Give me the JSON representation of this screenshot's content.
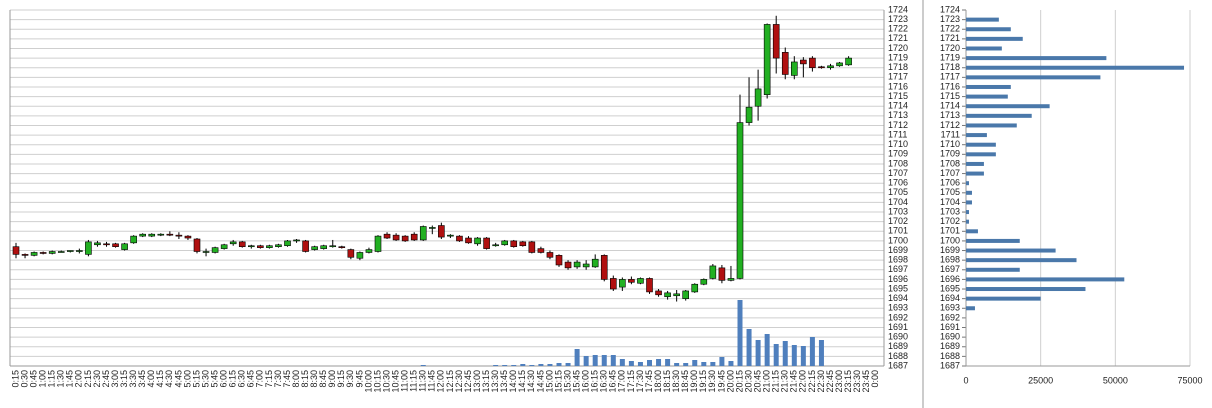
{
  "chart_data": [
    {
      "type": "candlestick",
      "categories": [
        "0:15",
        "0:30",
        "0:45",
        "1:00",
        "1:15",
        "1:30",
        "1:45",
        "2:00",
        "2:15",
        "2:30",
        "2:45",
        "3:00",
        "3:15",
        "3:30",
        "3:45",
        "4:00",
        "4:15",
        "4:30",
        "4:45",
        "5:00",
        "5:15",
        "5:30",
        "5:45",
        "6:00",
        "6:15",
        "6:30",
        "6:45",
        "7:00",
        "7:15",
        "7:30",
        "7:45",
        "8:00",
        "8:15",
        "8:30",
        "8:45",
        "9:00",
        "9:15",
        "9:30",
        "9:45",
        "10:00",
        "10:15",
        "10:30",
        "10:45",
        "11:00",
        "11:15",
        "11:30",
        "11:45",
        "12:00",
        "12:15",
        "12:30",
        "12:45",
        "13:00",
        "13:15",
        "13:30",
        "13:45",
        "14:00",
        "14:15",
        "14:30",
        "14:45",
        "15:00",
        "15:15",
        "15:30",
        "15:45",
        "16:00",
        "16:15",
        "16:30",
        "16:45",
        "17:00",
        "17:15",
        "17:30",
        "17:45",
        "18:00",
        "18:15",
        "18:30",
        "18:45",
        "19:00",
        "19:15",
        "19:30",
        "19:45",
        "20:00",
        "20:15",
        "20:30",
        "20:45",
        "21:00",
        "21:15",
        "21:30",
        "21:45",
        "22:00",
        "22:15",
        "22:30",
        "22:45",
        "23:00",
        "23:15",
        "23:30",
        "23:45",
        "0:00"
      ],
      "open": [
        1699.4,
        1698.6,
        1698.5,
        1698.8,
        1698.7,
        1698.9,
        1698.9,
        1699.0,
        1698.6,
        1699.6,
        1699.7,
        1699.7,
        1699.1,
        1699.8,
        1700.5,
        1700.5,
        1700.6,
        1700.7,
        1700.6,
        1700.5,
        1700.2,
        1698.9,
        1698.8,
        1699.2,
        1699.7,
        1699.9,
        1699.4,
        1699.5,
        1699.3,
        1699.4,
        1699.5,
        1700.0,
        1700.0,
        1699.1,
        1699.2,
        1699.4,
        1699.4,
        1699.1,
        1698.2,
        1698.8,
        1698.9,
        1700.7,
        1700.6,
        1700.5,
        1700.7,
        1700.1,
        1701.3,
        1701.6,
        1700.5,
        1700.5,
        1700.3,
        1699.7,
        1700.3,
        1699.5,
        1699.6,
        1700.0,
        1699.9,
        1699.9,
        1699.2,
        1698.8,
        1698.5,
        1697.8,
        1697.3,
        1697.3,
        1697.3,
        1698.5,
        1696.1,
        1695.2,
        1696.0,
        1695.6,
        1696.1,
        1694.8,
        1694.2,
        1694.3,
        1694.0,
        1694.7,
        1695.5,
        1696.1,
        1697.2,
        1695.9,
        1696.1,
        1712.3,
        1714.0,
        1715.2,
        1722.5,
        1719.6,
        1717.2,
        1718.8,
        1719.0,
        1718.1,
        1718.0,
        1718.2,
        1718.3,
        null,
        null,
        null
      ],
      "high": [
        1699.8,
        1698.7,
        1698.9,
        1698.9,
        1699.0,
        1699.0,
        1699.0,
        1699.2,
        1700.1,
        1700.0,
        1699.9,
        1699.8,
        1699.8,
        1700.6,
        1700.8,
        1700.8,
        1700.8,
        1701.0,
        1700.9,
        1700.6,
        1700.3,
        1699.2,
        1699.4,
        1699.7,
        1700.1,
        1700.0,
        1699.6,
        1699.6,
        1699.6,
        1699.7,
        1700.1,
        1700.2,
        1700.1,
        1699.5,
        1699.6,
        1700.1,
        1699.5,
        1699.2,
        1698.9,
        1699.3,
        1700.6,
        1700.9,
        1700.8,
        1700.6,
        1700.9,
        1701.6,
        1701.6,
        1701.9,
        1700.7,
        1700.6,
        1700.5,
        1700.4,
        1700.4,
        1699.8,
        1700.1,
        1700.1,
        1700.0,
        1700.0,
        1699.4,
        1699.0,
        1698.6,
        1698.0,
        1698.0,
        1698.0,
        1698.6,
        1698.6,
        1696.4,
        1696.2,
        1696.3,
        1696.2,
        1696.2,
        1695.0,
        1694.8,
        1694.9,
        1694.9,
        1695.6,
        1696.1,
        1697.6,
        1697.5,
        1697.4,
        1715.2,
        1717.0,
        1717.8,
        1722.6,
        1723.4,
        1720.1,
        1719.2,
        1719.1,
        1719.2,
        1718.2,
        1718.4,
        1718.6,
        1719.2,
        null,
        null,
        null
      ],
      "low": [
        1698.2,
        1698.2,
        1698.4,
        1698.6,
        1698.6,
        1698.8,
        1698.8,
        1698.7,
        1698.4,
        1699.4,
        1699.4,
        1699.3,
        1699.0,
        1699.7,
        1700.4,
        1700.4,
        1700.5,
        1700.5,
        1700.2,
        1700.1,
        1698.7,
        1698.4,
        1698.7,
        1699.1,
        1699.5,
        1699.3,
        1699.2,
        1699.2,
        1699.2,
        1699.3,
        1699.4,
        1699.8,
        1698.8,
        1699.0,
        1699.1,
        1699.3,
        1699.2,
        1698.1,
        1698.0,
        1698.7,
        1698.8,
        1700.2,
        1700.0,
        1699.9,
        1700.0,
        1700.0,
        1700.7,
        1700.2,
        1700.3,
        1699.9,
        1699.7,
        1699.5,
        1699.1,
        1699.4,
        1699.5,
        1699.3,
        1699.4,
        1698.7,
        1698.7,
        1698.1,
        1697.3,
        1697.0,
        1697.1,
        1697.0,
        1697.2,
        1695.8,
        1694.8,
        1694.8,
        1695.5,
        1695.5,
        1694.5,
        1694.2,
        1693.9,
        1693.7,
        1693.8,
        1694.6,
        1695.4,
        1696.0,
        1695.6,
        1695.8,
        1696.0,
        1712.0,
        1712.5,
        1714.8,
        1717.4,
        1716.8,
        1716.8,
        1717.0,
        1717.6,
        1717.9,
        1717.8,
        1718.1,
        1718.2,
        null,
        null,
        null
      ],
      "close": [
        1698.6,
        1698.5,
        1698.8,
        1698.7,
        1698.9,
        1698.9,
        1699.0,
        1699.0,
        1699.9,
        1699.8,
        1699.6,
        1699.4,
        1699.7,
        1700.5,
        1700.7,
        1700.7,
        1700.7,
        1700.6,
        1700.5,
        1700.3,
        1698.9,
        1698.9,
        1699.3,
        1699.6,
        1699.9,
        1699.4,
        1699.5,
        1699.3,
        1699.5,
        1699.6,
        1700.0,
        1700.1,
        1698.9,
        1699.4,
        1699.5,
        1699.5,
        1699.3,
        1698.3,
        1698.8,
        1699.1,
        1700.5,
        1700.3,
        1700.1,
        1700.0,
        1700.1,
        1701.5,
        1701.4,
        1700.4,
        1700.6,
        1700.0,
        1699.8,
        1700.3,
        1699.2,
        1699.6,
        1700.0,
        1699.4,
        1699.5,
        1698.8,
        1698.8,
        1698.3,
        1697.5,
        1697.2,
        1697.8,
        1697.6,
        1698.1,
        1696.0,
        1695.0,
        1696.0,
        1695.7,
        1696.1,
        1694.7,
        1694.4,
        1694.6,
        1694.5,
        1694.8,
        1695.5,
        1696.0,
        1697.4,
        1695.9,
        1696.1,
        1712.3,
        1713.9,
        1715.8,
        1722.5,
        1719.0,
        1717.3,
        1718.6,
        1718.4,
        1718.0,
        1718.0,
        1718.2,
        1718.5,
        1719.0,
        null,
        null,
        null
      ],
      "volume": [
        null,
        null,
        null,
        null,
        null,
        null,
        null,
        null,
        null,
        null,
        null,
        null,
        null,
        null,
        null,
        null,
        null,
        null,
        null,
        null,
        null,
        null,
        null,
        null,
        null,
        null,
        null,
        null,
        null,
        null,
        null,
        null,
        null,
        null,
        null,
        null,
        null,
        null,
        null,
        null,
        null,
        null,
        null,
        null,
        null,
        1,
        null,
        null,
        null,
        null,
        null,
        null,
        null,
        1,
        1,
        1,
        2,
        1,
        2,
        2,
        3,
        3,
        17,
        10,
        11,
        11,
        11,
        7,
        5,
        4,
        6,
        7,
        7,
        3,
        3,
        6,
        4,
        4,
        9,
        5,
        66,
        37,
        26,
        32,
        22,
        25,
        21,
        20,
        29,
        26,
        null,
        null,
        null,
        null,
        null,
        null
      ],
      "up_color": "#22b022",
      "down_color": "#b01010",
      "volume_color": "#4f7fbd",
      "ylim": [
        1687,
        1724
      ],
      "yticks": [
        1724,
        1723,
        1722,
        1721,
        1720,
        1719,
        1718,
        1717,
        1716,
        1715,
        1714,
        1713,
        1712,
        1711,
        1710,
        1709,
        1708,
        1707,
        1706,
        1705,
        1704,
        1703,
        1702,
        1701,
        1700,
        1699,
        1698,
        1697,
        1696,
        1695,
        1694,
        1693,
        1692,
        1691,
        1690,
        1689,
        1688,
        1687
      ],
      "grid": true
    },
    {
      "type": "barh",
      "y": [
        1687,
        1688,
        1689,
        1690,
        1691,
        1692,
        1693,
        1694,
        1695,
        1696,
        1697,
        1698,
        1699,
        1700,
        1701,
        1702,
        1703,
        1704,
        1705,
        1706,
        1707,
        1708,
        1709,
        1710,
        1711,
        1712,
        1713,
        1714,
        1715,
        1716,
        1717,
        1718,
        1719,
        1720,
        1721,
        1722,
        1723
      ],
      "values": [
        0,
        0,
        0,
        0,
        0,
        0,
        3000,
        25000,
        40000,
        53000,
        18000,
        37000,
        30000,
        18000,
        4000,
        1000,
        1000,
        2000,
        2000,
        1000,
        6000,
        6000,
        10000,
        10000,
        7000,
        17000,
        22000,
        28000,
        14000,
        15000,
        45000,
        73000,
        47000,
        12000,
        19000,
        15000,
        11000
      ],
      "color": "#4a78aa",
      "ylim": [
        1687,
        1724
      ],
      "yticks": [
        1724,
        1723,
        1722,
        1721,
        1720,
        1719,
        1718,
        1717,
        1716,
        1715,
        1714,
        1713,
        1712,
        1711,
        1710,
        1709,
        1708,
        1707,
        1706,
        1705,
        1704,
        1703,
        1702,
        1701,
        1700,
        1699,
        1698,
        1697,
        1696,
        1695,
        1694,
        1693,
        1692,
        1691,
        1690,
        1689,
        1688,
        1687
      ],
      "xlim": [
        0,
        75000
      ],
      "xticks": [
        0,
        25000,
        50000,
        75000
      ],
      "grid": true
    }
  ]
}
